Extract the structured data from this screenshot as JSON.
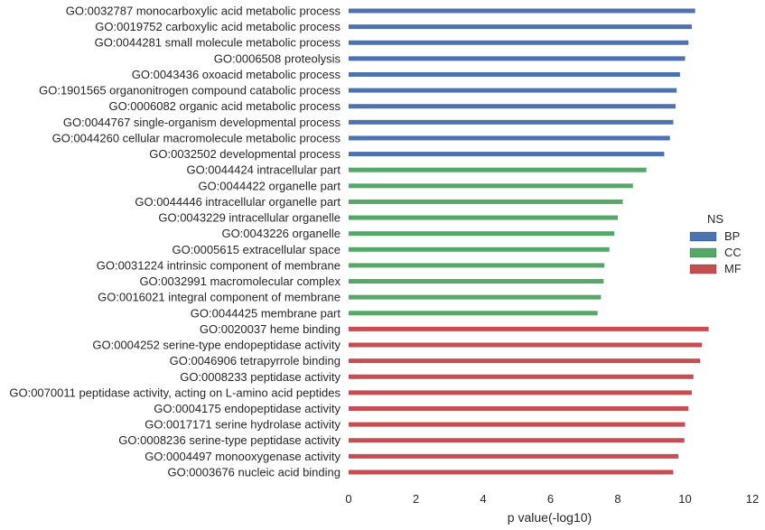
{
  "chart_data": {
    "type": "bar",
    "orientation": "horizontal",
    "xlabel": "p value(-log10)",
    "xlim": [
      0,
      12
    ],
    "xticks": [
      0,
      2,
      4,
      6,
      8,
      10,
      12
    ],
    "grid": false,
    "legend": {
      "title": "NS",
      "placement": "right",
      "entries": [
        {
          "name": "BP",
          "color": "#4c72b0"
        },
        {
          "name": "CC",
          "color": "#55a868"
        },
        {
          "name": "MF",
          "color": "#c44e52"
        }
      ]
    },
    "bars": [
      {
        "label": "GO:0032787 monocarboxylic acid metabolic process",
        "group": "BP",
        "value": 10.3
      },
      {
        "label": "GO:0019752 carboxylic acid metabolic process",
        "group": "BP",
        "value": 10.2
      },
      {
        "label": "GO:0044281 small molecule metabolic process",
        "group": "BP",
        "value": 10.1
      },
      {
        "label": "GO:0006508 proteolysis",
        "group": "BP",
        "value": 10.0
      },
      {
        "label": "GO:0043436 oxoacid metabolic process",
        "group": "BP",
        "value": 9.85
      },
      {
        "label": "GO:1901565 organonitrogen compound catabolic process",
        "group": "BP",
        "value": 9.75
      },
      {
        "label": "GO:0006082 organic acid metabolic process",
        "group": "BP",
        "value": 9.72
      },
      {
        "label": "GO:0044767 single-organism developmental process",
        "group": "BP",
        "value": 9.65
      },
      {
        "label": "GO:0044260 cellular macromolecule metabolic process",
        "group": "BP",
        "value": 9.55
      },
      {
        "label": "GO:0032502 developmental process",
        "group": "BP",
        "value": 9.38
      },
      {
        "label": "GO:0044424 intracellular part",
        "group": "CC",
        "value": 8.85
      },
      {
        "label": "GO:0044422 organelle part",
        "group": "CC",
        "value": 8.45
      },
      {
        "label": "GO:0044446 intracellular organelle part",
        "group": "CC",
        "value": 8.15
      },
      {
        "label": "GO:0043229 intracellular organelle",
        "group": "CC",
        "value": 8.0
      },
      {
        "label": "GO:0043226 organelle",
        "group": "CC",
        "value": 7.9
      },
      {
        "label": "GO:0005615 extracellular space",
        "group": "CC",
        "value": 7.75
      },
      {
        "label": "GO:0031224 intrinsic component of membrane",
        "group": "CC",
        "value": 7.6
      },
      {
        "label": "GO:0032991 macromolecular complex",
        "group": "CC",
        "value": 7.58
      },
      {
        "label": "GO:0016021 integral component of membrane",
        "group": "CC",
        "value": 7.5
      },
      {
        "label": "GO:0044425 membrane part",
        "group": "CC",
        "value": 7.4
      },
      {
        "label": "GO:0020037 heme binding",
        "group": "MF",
        "value": 10.7
      },
      {
        "label": "GO:0004252 serine-type endopeptidase activity",
        "group": "MF",
        "value": 10.5
      },
      {
        "label": "GO:0046906 tetrapyrrole binding",
        "group": "MF",
        "value": 10.45
      },
      {
        "label": "GO:0008233 peptidase activity",
        "group": "MF",
        "value": 10.25
      },
      {
        "label": "GO:0070011 peptidase activity, acting on L-amino acid peptides",
        "group": "MF",
        "value": 10.2
      },
      {
        "label": "GO:0004175 endopeptidase activity",
        "group": "MF",
        "value": 10.1
      },
      {
        "label": "GO:0017171 serine hydrolase activity",
        "group": "MF",
        "value": 10.0
      },
      {
        "label": "GO:0008236 serine-type peptidase activity",
        "group": "MF",
        "value": 9.98
      },
      {
        "label": "GO:0004497 monooxygenase activity",
        "group": "MF",
        "value": 9.8
      },
      {
        "label": "GO:0003676 nucleic acid binding",
        "group": "MF",
        "value": 9.65
      }
    ]
  }
}
